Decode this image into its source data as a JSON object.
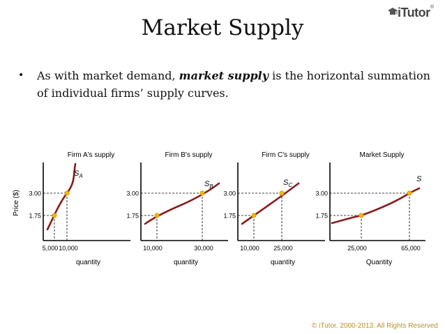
{
  "header": {
    "title": "Market Supply",
    "logo_text": "iTutor",
    "logo_reg": "®"
  },
  "bullet": {
    "symbol": "•",
    "text_before": "As with market demand, ",
    "emphasis": "market supply",
    "text_after": " is the horizontal summation of individual firms’ supply curves."
  },
  "colors": {
    "curve": "#8b1a1a",
    "point": "#f2b705",
    "axis": "#000000",
    "footer": "#b8912a"
  },
  "chart_data": [
    {
      "type": "line",
      "title": "Firm A's supply",
      "ylabel": "Price ($)",
      "xlabel": "quantity",
      "curve_label": "S",
      "curve_label_sub": "A",
      "ytick_labels": [
        "3.00",
        "1.75"
      ],
      "xtick_labels": [
        "5,000",
        "10,000"
      ],
      "points": [
        {
          "x": 5000,
          "y": 1.75
        },
        {
          "x": 10000,
          "y": 3.0
        }
      ]
    },
    {
      "type": "line",
      "title": "Firm B's supply",
      "xlabel": "quantity",
      "curve_label": "S",
      "curve_label_sub": "B",
      "ytick_labels": [
        "3.00",
        "1.75"
      ],
      "xtick_labels": [
        "10,000",
        "30,000"
      ],
      "points": [
        {
          "x": 10000,
          "y": 1.75
        },
        {
          "x": 30000,
          "y": 3.0
        }
      ]
    },
    {
      "type": "line",
      "title": "Firm C's supply",
      "xlabel": "quantity",
      "curve_label": "S",
      "curve_label_sub": "C",
      "ytick_labels": [
        "3.00",
        "1.75"
      ],
      "xtick_labels": [
        "10,000",
        "25,000"
      ],
      "points": [
        {
          "x": 10000,
          "y": 1.75
        },
        {
          "x": 25000,
          "y": 3.0
        }
      ]
    },
    {
      "type": "line",
      "title": "Market Supply",
      "xlabel": "Quantity",
      "curve_label": "S",
      "curve_label_sub": "",
      "ytick_labels": [
        "3.00",
        "1.75"
      ],
      "xtick_labels": [
        "25,000",
        "65,000"
      ],
      "points": [
        {
          "x": 25000,
          "y": 1.75
        },
        {
          "x": 65000,
          "y": 3.0
        }
      ]
    }
  ],
  "footer": {
    "copyright": "© iTutor. 2000-2013. All Rights Reserved"
  }
}
